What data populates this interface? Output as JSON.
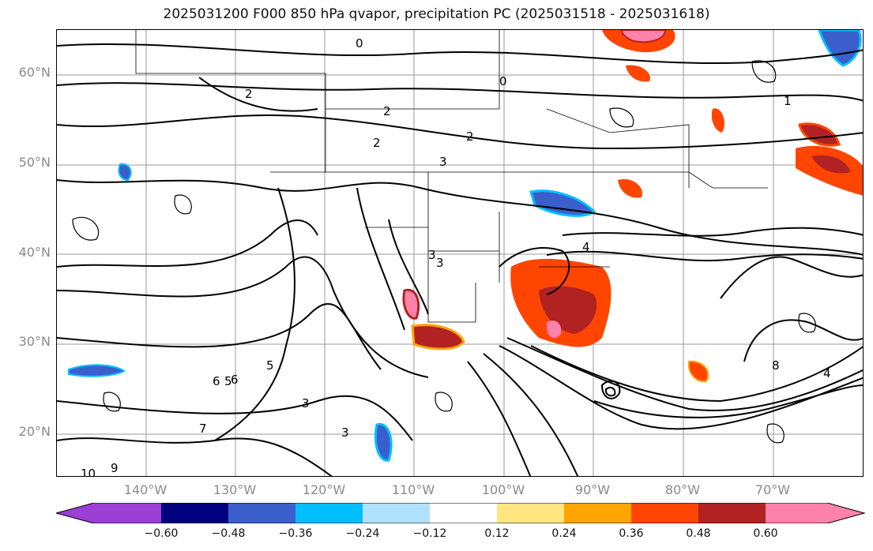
{
  "title": "2025031200 F000 850 hPa qvapor, precipitation PC (2025031518 - 2025031618)",
  "lat_labels": [
    "60°N",
    "50°N",
    "40°N",
    "30°N",
    "20°N"
  ],
  "lon_labels": [
    "140°W",
    "130°W",
    "120°W",
    "110°W",
    "100°W",
    "90°W",
    "80°W",
    "70°W"
  ],
  "colorbar": {
    "ticks": [
      "−0.60",
      "−0.48",
      "−0.36",
      "−0.24",
      "−0.12",
      "0.12",
      "0.24",
      "0.36",
      "0.48",
      "0.60"
    ],
    "colors": [
      "#9b3fd6",
      "#000080",
      "#3a5fcd",
      "#00bfff",
      "#b0e2ff",
      "#ffffff",
      "#ffe680",
      "#ffa500",
      "#ff4500",
      "#b22222",
      "#ff82ab"
    ]
  },
  "contour_labels": [
    "0",
    "0",
    "2",
    "2",
    "2",
    "3",
    "2",
    "3",
    "3",
    "4",
    "5",
    "6",
    "5",
    "6",
    "3",
    "3",
    "7",
    "10",
    "9",
    "8",
    "4",
    "1"
  ]
}
